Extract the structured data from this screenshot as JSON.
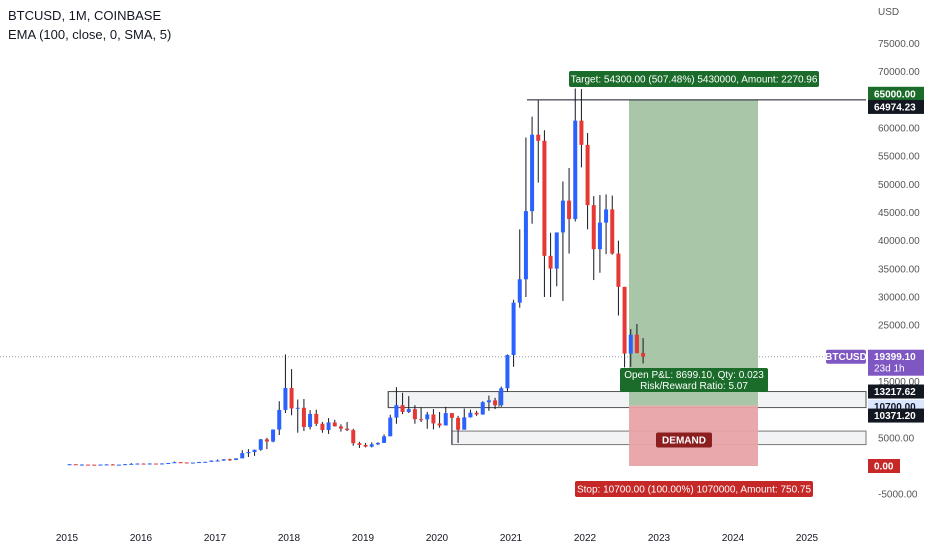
{
  "header": {
    "symbol_line": "BTCUSD, 1M, COINBASE",
    "indicator_line": "EMA (100, close, 0, SMA, 5)"
  },
  "currency": "USD",
  "colors": {
    "up": "#2962ff",
    "down": "#e53935",
    "target_zone": "#a5c3a3",
    "stop_zone": "#e8a3a6",
    "target_label_bg": "#1b6b2a",
    "stop_label_bg": "#c62828",
    "demand_label_bg": "#8b1e1e",
    "symbol_tag_bg": "#7e57c2",
    "price_dark_bg": "#131722",
    "price_blue_bg": "#dbe6ff"
  },
  "annotations": {
    "target_label": "Target: 54300.00 (507.48%) 5430000, Amount: 2270.96",
    "stop_label": "Stop: 10700.00 (100.00%) 1070000, Amount: 750.75",
    "open_pnl_line1": "Open P&L: 8699.10, Qty: 0.023",
    "open_pnl_line2": "Risk/Reward Ratio: 5.07",
    "demand_label": "DEMAND"
  },
  "price_tags": {
    "target": "65000.00",
    "ath": "64974.23",
    "symbol": "BTCUSD",
    "current": "19399.10",
    "countdown": "23d 1h",
    "level_a": "13217.62",
    "level_b": "10700.00",
    "level_c": "10371.20",
    "stop": "0.00"
  },
  "chart_data": {
    "type": "candlestick",
    "symbol": "BTCUSD",
    "interval": "1M",
    "exchange": "COINBASE",
    "y_axis": {
      "ticks": [
        -5000,
        0,
        5000,
        10000,
        15000,
        20000,
        25000,
        30000,
        35000,
        40000,
        45000,
        50000,
        55000,
        60000,
        65000,
        70000,
        75000
      ],
      "tick_labels": [
        "-5000.00",
        "0.00",
        "5000.00",
        "10000.00",
        "15000.00",
        "20000.00",
        "25000.00",
        "30000.00",
        "35000.00",
        "40000.00",
        "45000.00",
        "50000.00",
        "55000.00",
        "60000.00",
        "65000.00",
        "70000.00",
        "75000.00"
      ]
    },
    "x_axis": {
      "ticks": [
        2015,
        2016,
        2017,
        2018,
        2019,
        2020,
        2021,
        2022,
        2023,
        2024,
        2025
      ],
      "tick_labels": [
        "2015",
        "2016",
        "2017",
        "2018",
        "2019",
        "2020",
        "2021",
        "2022",
        "2023",
        "2024",
        "2025"
      ]
    },
    "closes": [
      310,
      230,
      250,
      240,
      230,
      260,
      280,
      230,
      240,
      320,
      380,
      430,
      370,
      440,
      420,
      450,
      530,
      670,
      630,
      580,
      610,
      700,
      740,
      960,
      970,
      1190,
      1080,
      1350,
      2290,
      2480,
      2870,
      4730,
      4340,
      6470,
      9950,
      13850,
      10220,
      10330,
      6930,
      9240,
      7500,
      6400,
      7730,
      7030,
      6630,
      6370,
      4040,
      3740,
      3440,
      3850,
      4100,
      5270,
      8590,
      10800,
      9590,
      10090,
      8300,
      8290,
      9150,
      7550,
      7190,
      9390,
      8540,
      6440,
      8630,
      9450,
      9140,
      11320,
      11650,
      10780,
      13800,
      19700,
      28990,
      33140,
      45240,
      58800,
      57720,
      37300,
      35040,
      41460,
      47100,
      43830,
      61300,
      57000,
      46300,
      38480,
      43200,
      45540,
      37700,
      31800,
      19950,
      23300,
      20050,
      19400
    ],
    "highs": [
      320,
      290,
      300,
      260,
      250,
      270,
      310,
      330,
      250,
      330,
      500,
      470,
      460,
      480,
      430,
      470,
      550,
      780,
      700,
      630,
      620,
      740,
      750,
      980,
      1160,
      1200,
      1300,
      1370,
      2800,
      3000,
      2920,
      4800,
      5000,
      6500,
      11500,
      19800,
      17200,
      11800,
      11900,
      9900,
      10000,
      7800,
      8500,
      8200,
      7400,
      7800,
      6600,
      4300,
      4100,
      4200,
      4200,
      5600,
      9100,
      14000,
      13000,
      12400,
      10800,
      10400,
      9600,
      10100,
      9600,
      10500,
      9200,
      8900,
      10200,
      10000,
      9800,
      11500,
      12500,
      12100,
      14100,
      19800,
      29500,
      42000,
      58300,
      62000,
      64900,
      59600,
      41400,
      40600,
      50500,
      52900,
      67000,
      66900,
      59100,
      47900,
      48100,
      48200,
      48000,
      40000,
      31800,
      24300,
      25200,
      22700
    ],
    "lows": [
      250,
      160,
      210,
      230,
      220,
      230,
      250,
      200,
      210,
      230,
      300,
      360,
      360,
      360,
      370,
      410,
      440,
      520,
      610,
      480,
      560,
      610,
      700,
      760,
      900,
      920,
      900,
      1060,
      1400,
      1600,
      1800,
      2700,
      3000,
      4200,
      5500,
      9400,
      9000,
      5900,
      6200,
      6500,
      7100,
      5900,
      5700,
      7000,
      6100,
      6200,
      3600,
      3200,
      3300,
      3300,
      3700,
      4100,
      5300,
      7500,
      9200,
      9400,
      7500,
      7800,
      6600,
      6500,
      6800,
      7700,
      3800,
      4100,
      6600,
      8600,
      8900,
      9100,
      9800,
      10100,
      10500,
      13200,
      17600,
      28100,
      30000,
      43000,
      50300,
      30000,
      30000,
      31900,
      29300,
      37700,
      43400,
      53000,
      42000,
      33000,
      34300,
      37600,
      37500,
      26700,
      17500,
      17600,
      20000,
      18200
    ]
  },
  "position": {
    "entry": 10700,
    "target": 65000,
    "stop": 0,
    "current": 19399.1
  }
}
